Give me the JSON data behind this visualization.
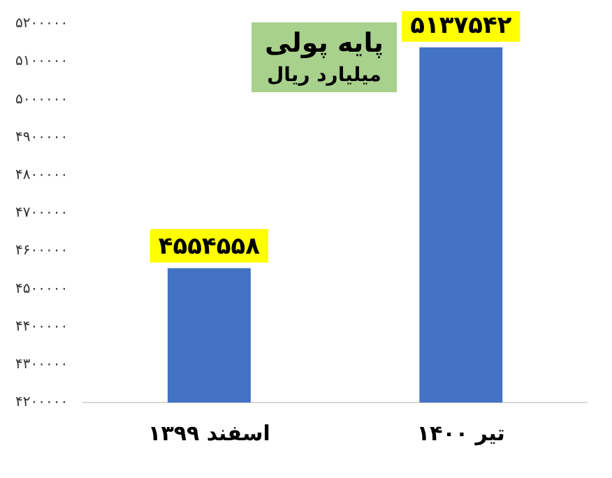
{
  "chart_data": {
    "type": "bar",
    "title": "پایه پولی",
    "subtitle": "میلیارد ریال",
    "categories": [
      "اسفند ۱۳۹۹",
      "تیر ۱۴۰۰"
    ],
    "values": [
      4554558,
      5137542
    ],
    "color": "#4472c4",
    "value_labels": [
      "۴۵۵۴۵۵۸",
      "۵۱۳۷۵۴۲"
    ],
    "ylim": [
      4200000,
      5200000
    ],
    "yticks": [
      {
        "value": 4200000,
        "label": "۴۲۰۰۰۰۰"
      },
      {
        "value": 4300000,
        "label": "۴۳۰۰۰۰۰"
      },
      {
        "value": 4400000,
        "label": "۴۴۰۰۰۰۰"
      },
      {
        "value": 4500000,
        "label": "۴۵۰۰۰۰۰"
      },
      {
        "value": 4600000,
        "label": "۴۶۰۰۰۰۰"
      },
      {
        "value": 4700000,
        "label": "۴۷۰۰۰۰۰"
      },
      {
        "value": 4800000,
        "label": "۴۸۰۰۰۰۰"
      },
      {
        "value": 4900000,
        "label": "۴۹۰۰۰۰۰"
      },
      {
        "value": 5000000,
        "label": "۵۰۰۰۰۰۰"
      },
      {
        "value": 5100000,
        "label": "۵۱۰۰۰۰۰"
      },
      {
        "value": 5200000,
        "label": "۵۲۰۰۰۰۰"
      }
    ],
    "grid": false,
    "legend": false
  }
}
